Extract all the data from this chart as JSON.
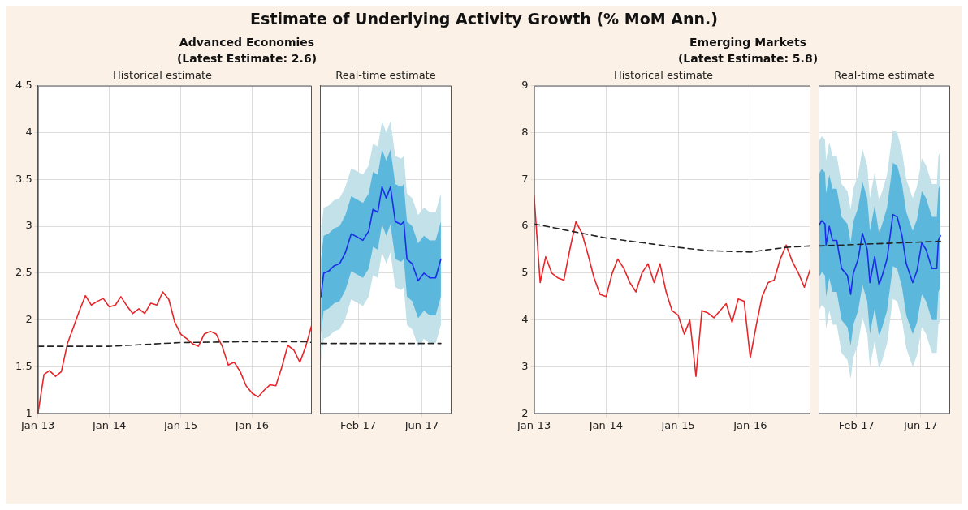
{
  "chart_data": [
    {
      "type": "other",
      "title": "Estimate of Underlying Activity Growth (% MoM Ann.)"
    },
    {
      "type": "line",
      "title": "Advanced Economies",
      "subtitle": "(Latest Estimate: 2.6)",
      "annotations": [
        "Historical estimate"
      ],
      "grid": true,
      "legend": false,
      "marker": "none",
      "line_style": "solid",
      "ylim": [
        1,
        4.5
      ],
      "yticks": [
        1,
        1.5,
        2,
        2.5,
        3,
        3.5,
        4,
        4.5
      ],
      "xlim": [
        "2013-01",
        "2016-11"
      ],
      "xticks": [
        {
          "value": "2013-01",
          "label": "Jan-13"
        },
        {
          "value": "2014-01",
          "label": "Jan-14"
        },
        {
          "value": "2015-01",
          "label": "Jan-15"
        },
        {
          "value": "2016-01",
          "label": "Jan-16"
        }
      ],
      "x": [
        "2013-01",
        "2013-02",
        "2013-03",
        "2013-04",
        "2013-05",
        "2013-06",
        "2013-07",
        "2013-08",
        "2013-09",
        "2013-10",
        "2013-11",
        "2013-12",
        "2014-01",
        "2014-02",
        "2014-03",
        "2014-04",
        "2014-05",
        "2014-06",
        "2014-07",
        "2014-08",
        "2014-09",
        "2014-10",
        "2014-11",
        "2014-12",
        "2015-01",
        "2015-02",
        "2015-03",
        "2015-04",
        "2015-05",
        "2015-06",
        "2015-07",
        "2015-08",
        "2015-09",
        "2015-10",
        "2015-11",
        "2015-12",
        "2016-01",
        "2016-02",
        "2016-03",
        "2016-04",
        "2016-05",
        "2016-06",
        "2016-07",
        "2016-08",
        "2016-09",
        "2016-10",
        "2016-11"
      ],
      "series": [
        {
          "color": "#e8262a",
          "values": [
            1.0,
            1.42,
            1.46,
            1.4,
            1.45,
            1.75,
            1.92,
            2.1,
            2.26,
            2.16,
            2.2,
            2.23,
            2.14,
            2.16,
            2.25,
            2.15,
            2.07,
            2.12,
            2.07,
            2.18,
            2.16,
            2.3,
            2.22,
            1.98,
            1.85,
            1.8,
            1.75,
            1.72,
            1.85,
            1.88,
            1.85,
            1.72,
            1.52,
            1.55,
            1.45,
            1.3,
            1.22,
            1.18,
            1.25,
            1.31,
            1.3,
            1.5,
            1.73,
            1.68,
            1.55,
            1.72,
            1.95
          ]
        },
        {
          "color": "#222222",
          "line_style": "dashed",
          "x": [
            "2013-01",
            "2014-01",
            "2014-07",
            "2015-01",
            "2016-01",
            "2016-10",
            "2016-11"
          ],
          "values": [
            1.72,
            1.72,
            1.74,
            1.76,
            1.77,
            1.77,
            1.76
          ]
        }
      ]
    },
    {
      "type": "line",
      "annotations": [
        "Real-time estimate"
      ],
      "grid": true,
      "legend": false,
      "marker": "none",
      "line_style": "solid",
      "tick_labels": "x",
      "ylim": [
        1,
        4.5
      ],
      "yticks": [
        1,
        1.5,
        2,
        2.5,
        3,
        3.5,
        4,
        4.5
      ],
      "xlim": [
        "2016-11-21",
        "2017-07-27"
      ],
      "xticks": [
        {
          "value": "2017-02",
          "label": "Feb-17"
        },
        {
          "value": "2017-06",
          "label": "Jun-17"
        }
      ],
      "x": [
        "2016-11-23",
        "2016-11-28",
        "2016-12-07",
        "2016-12-18",
        "2016-12-28",
        "2017-01-08",
        "2017-01-19",
        "2017-02-01",
        "2017-02-10",
        "2017-02-21",
        "2017-03-01",
        "2017-03-10",
        "2017-03-18",
        "2017-03-26",
        "2017-04-03",
        "2017-04-12",
        "2017-04-23",
        "2017-04-28",
        "2017-05-04",
        "2017-05-14",
        "2017-05-25",
        "2017-06-05",
        "2017-06-16",
        "2017-06-27",
        "2017-07-07"
      ],
      "series": [
        {
          "color": "#c2e1e8",
          "values": [
            null,
            null,
            null,
            null,
            null,
            null,
            null,
            null,
            null,
            null,
            null,
            null,
            null,
            null,
            null,
            null,
            null,
            null,
            null,
            null,
            null,
            null,
            null,
            null,
            null
          ],
          "lower": [
            1.55,
            1.8,
            1.82,
            1.88,
            1.9,
            2.02,
            2.22,
            2.18,
            2.15,
            2.25,
            2.48,
            2.45,
            2.72,
            2.6,
            2.72,
            2.35,
            2.32,
            2.35,
            1.95,
            1.9,
            1.72,
            1.8,
            1.75,
            1.75,
            1.95
          ],
          "upper": [
            2.95,
            3.2,
            3.22,
            3.28,
            3.3,
            3.42,
            3.62,
            3.58,
            3.55,
            3.65,
            3.88,
            3.85,
            4.12,
            4.0,
            4.12,
            3.75,
            3.72,
            3.75,
            3.35,
            3.3,
            3.12,
            3.2,
            3.15,
            3.15,
            3.35
          ]
        },
        {
          "color": "#5bb8dc",
          "values": [
            null,
            null,
            null,
            null,
            null,
            null,
            null,
            null,
            null,
            null,
            null,
            null,
            null,
            null,
            null,
            null,
            null,
            null,
            null,
            null,
            null,
            null,
            null,
            null,
            null
          ],
          "lower": [
            1.85,
            2.1,
            2.12,
            2.18,
            2.2,
            2.32,
            2.52,
            2.48,
            2.45,
            2.55,
            2.78,
            2.75,
            3.02,
            2.9,
            3.02,
            2.65,
            2.62,
            2.65,
            2.25,
            2.2,
            2.02,
            2.1,
            2.05,
            2.05,
            2.25
          ],
          "upper": [
            2.65,
            2.9,
            2.92,
            2.98,
            3.0,
            3.12,
            3.32,
            3.28,
            3.25,
            3.35,
            3.58,
            3.55,
            3.82,
            3.7,
            3.82,
            3.45,
            3.42,
            3.45,
            3.05,
            3.0,
            2.82,
            2.9,
            2.85,
            2.85,
            3.05
          ]
        },
        {
          "color": "#1a2ee8",
          "values": [
            2.25,
            2.5,
            2.52,
            2.58,
            2.6,
            2.72,
            2.92,
            2.88,
            2.85,
            2.95,
            3.18,
            3.15,
            3.42,
            3.3,
            3.42,
            3.05,
            3.02,
            3.05,
            2.65,
            2.6,
            2.42,
            2.5,
            2.45,
            2.45,
            2.65
          ]
        },
        {
          "color": "#222222",
          "line_style": "dashed",
          "x": [
            "2016-11-23",
            "2017-07-07"
          ],
          "values": [
            1.75,
            1.75
          ]
        }
      ]
    },
    {
      "type": "line",
      "title": "Emerging Markets",
      "subtitle": "(Latest Estimate: 5.8)",
      "annotations": [
        "Historical estimate"
      ],
      "grid": true,
      "legend": false,
      "marker": "none",
      "line_style": "solid",
      "ylim": [
        2,
        9
      ],
      "yticks": [
        2,
        3,
        4,
        5,
        6,
        7,
        8,
        9
      ],
      "xlim": [
        "2013-01",
        "2016-11"
      ],
      "xticks": [
        {
          "value": "2013-01",
          "label": "Jan-13"
        },
        {
          "value": "2014-01",
          "label": "Jan-14"
        },
        {
          "value": "2015-01",
          "label": "Jan-15"
        },
        {
          "value": "2016-01",
          "label": "Jan-16"
        }
      ],
      "x": [
        "2013-01",
        "2013-02",
        "2013-03",
        "2013-04",
        "2013-05",
        "2013-06",
        "2013-07",
        "2013-08",
        "2013-09",
        "2013-10",
        "2013-11",
        "2013-12",
        "2014-01",
        "2014-02",
        "2014-03",
        "2014-04",
        "2014-05",
        "2014-06",
        "2014-07",
        "2014-08",
        "2014-09",
        "2014-10",
        "2014-11",
        "2014-12",
        "2015-01",
        "2015-02",
        "2015-03",
        "2015-04",
        "2015-05",
        "2015-06",
        "2015-07",
        "2015-08",
        "2015-09",
        "2015-10",
        "2015-11",
        "2015-12",
        "2016-01",
        "2016-02",
        "2016-03",
        "2016-04",
        "2016-05",
        "2016-06",
        "2016-07",
        "2016-08",
        "2016-09",
        "2016-10",
        "2016-11"
      ],
      "series": [
        {
          "color": "#e8262a",
          "values": [
            6.66,
            4.8,
            5.35,
            5.0,
            4.9,
            4.85,
            5.5,
            6.1,
            5.85,
            5.4,
            4.9,
            4.55,
            4.5,
            5.0,
            5.3,
            5.1,
            4.8,
            4.6,
            5.0,
            5.2,
            4.8,
            5.2,
            4.6,
            4.2,
            4.1,
            3.7,
            4.0,
            2.8,
            4.2,
            4.15,
            4.05,
            4.2,
            4.35,
            3.95,
            4.45,
            4.4,
            3.2,
            3.9,
            4.5,
            4.8,
            4.85,
            5.3,
            5.6,
            5.25,
            5.0,
            4.7,
            5.1
          ]
        },
        {
          "color": "#222222",
          "line_style": "dashed",
          "x": [
            "2013-01",
            "2014-01",
            "2015-01",
            "2015-06",
            "2016-01",
            "2016-07",
            "2016-11"
          ],
          "values": [
            6.05,
            5.75,
            5.55,
            5.48,
            5.45,
            5.55,
            5.58
          ]
        }
      ]
    },
    {
      "type": "line",
      "annotations": [
        "Real-time estimate"
      ],
      "grid": true,
      "legend": false,
      "marker": "none",
      "line_style": "solid",
      "tick_labels": "x",
      "ylim": [
        2,
        9
      ],
      "yticks": [
        2,
        3,
        4,
        5,
        6,
        7,
        8,
        9
      ],
      "xlim": [
        "2016-11-22",
        "2017-07-26"
      ],
      "xticks": [
        {
          "value": "2017-02",
          "label": "Feb-17"
        },
        {
          "value": "2017-06",
          "label": "Jun-17"
        }
      ],
      "x": [
        "2016-11-22",
        "2016-11-28",
        "2016-12-04",
        "2016-12-06",
        "2016-12-12",
        "2016-12-18",
        "2016-12-26",
        "2017-01-04",
        "2017-01-15",
        "2017-01-21",
        "2017-01-26",
        "2017-02-04",
        "2017-02-12",
        "2017-02-21",
        "2017-02-26",
        "2017-03-07",
        "2017-03-15",
        "2017-03-21",
        "2017-03-30",
        "2017-04-10",
        "2017-04-18",
        "2017-04-27",
        "2017-05-05",
        "2017-05-17",
        "2017-05-25",
        "2017-06-03",
        "2017-06-11",
        "2017-06-22",
        "2017-07-01",
        "2017-07-04",
        "2017-07-08"
      ],
      "series": [
        {
          "color": "#c2e1e8",
          "values": [
            null,
            null,
            null,
            null,
            null,
            null,
            null,
            null,
            null,
            null,
            null,
            null,
            null,
            null,
            null,
            null,
            null,
            null,
            null,
            null,
            null,
            null,
            null,
            null,
            null,
            null,
            null,
            null,
            null,
            null,
            null
          ],
          "lower": [
            4.2,
            4.32,
            4.25,
            3.8,
            4.2,
            3.9,
            3.9,
            3.3,
            3.15,
            2.75,
            3.2,
            3.5,
            4.05,
            3.7,
            3.0,
            3.55,
            2.95,
            3.15,
            3.5,
            4.45,
            4.4,
            4.0,
            3.4,
            3.0,
            3.25,
            3.85,
            3.7,
            3.3,
            3.3,
            3.9,
            4.0
          ],
          "upper": [
            7.8,
            7.92,
            7.85,
            7.4,
            7.8,
            7.5,
            7.5,
            6.9,
            6.75,
            6.35,
            6.8,
            7.1,
            7.65,
            7.3,
            6.6,
            7.15,
            6.55,
            6.75,
            7.1,
            8.05,
            8.0,
            7.6,
            7.0,
            6.6,
            6.85,
            7.45,
            7.3,
            6.9,
            6.9,
            7.5,
            7.6
          ]
        },
        {
          "color": "#5bb8dc",
          "values": [
            null,
            null,
            null,
            null,
            null,
            null,
            null,
            null,
            null,
            null,
            null,
            null,
            null,
            null,
            null,
            null,
            null,
            null,
            null,
            null,
            null,
            null,
            null,
            null,
            null,
            null,
            null,
            null,
            null,
            null,
            null
          ],
          "lower": [
            4.9,
            5.02,
            4.95,
            4.5,
            4.9,
            4.6,
            4.6,
            4.0,
            3.85,
            3.45,
            3.9,
            4.2,
            4.75,
            4.4,
            3.7,
            4.25,
            3.65,
            3.85,
            4.2,
            5.15,
            5.1,
            4.7,
            4.1,
            3.7,
            3.95,
            4.55,
            4.4,
            4.0,
            4.0,
            4.6,
            4.7
          ],
          "upper": [
            7.1,
            7.22,
            7.15,
            6.7,
            7.1,
            6.8,
            6.8,
            6.2,
            6.05,
            5.65,
            6.1,
            6.4,
            6.95,
            6.6,
            5.9,
            6.45,
            5.85,
            6.05,
            6.4,
            7.35,
            7.3,
            6.9,
            6.3,
            5.9,
            6.15,
            6.75,
            6.6,
            6.2,
            6.2,
            6.8,
            6.9
          ]
        },
        {
          "color": "#1a2ee8",
          "values": [
            6.0,
            6.12,
            6.05,
            5.6,
            6.0,
            5.7,
            5.7,
            5.1,
            4.95,
            4.55,
            5.0,
            5.3,
            5.85,
            5.5,
            4.8,
            5.35,
            4.75,
            4.95,
            5.3,
            6.25,
            6.2,
            5.8,
            5.2,
            4.8,
            5.05,
            5.65,
            5.5,
            5.1,
            5.1,
            5.7,
            5.8
          ]
        },
        {
          "color": "#222222",
          "line_style": "dashed",
          "x": [
            "2016-11-22",
            "2017-07-08"
          ],
          "values": [
            5.58,
            5.68
          ]
        }
      ]
    }
  ]
}
